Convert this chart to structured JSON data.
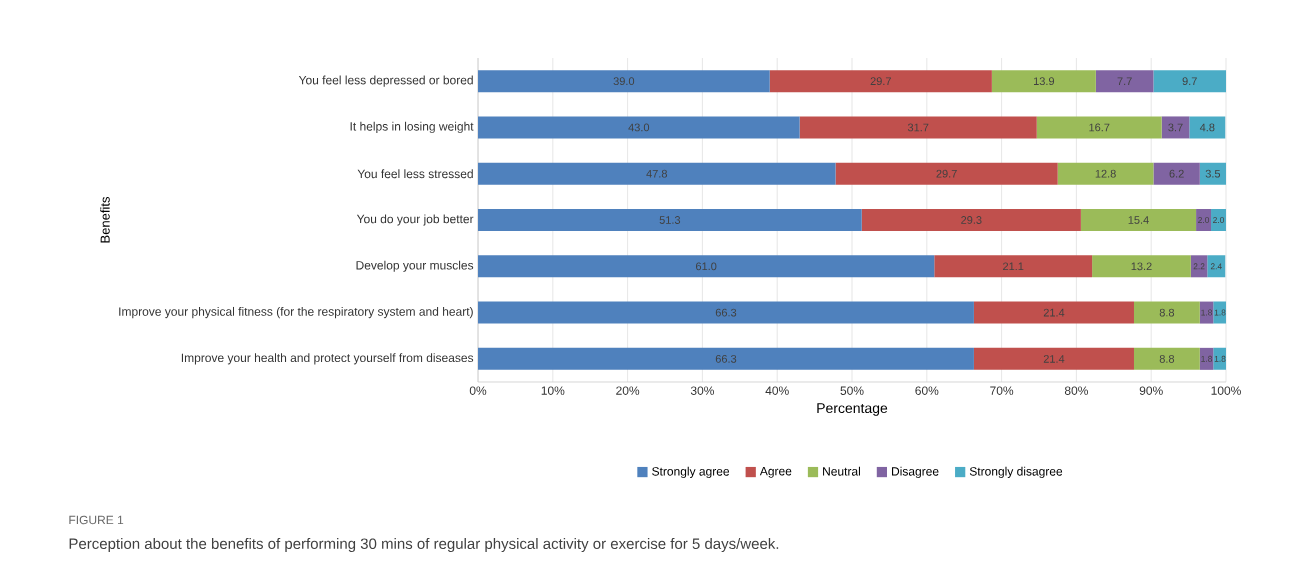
{
  "chart_data": {
    "type": "bar",
    "orientation": "horizontal",
    "stacked": true,
    "xlabel": "Percentage",
    "ylabel": "Benefits",
    "categories": [
      "You feel less depressed or bored",
      "It helps in losing weight",
      "You feel less stressed",
      "You do your job better",
      "Develop your muscles",
      "Improve your physical fitness (for the respiratory system and heart)",
      "Improve your health and protect yourself from diseases"
    ],
    "series": [
      {
        "name": "Strongly agree",
        "color": "#4f81bd",
        "values": [
          39.0,
          43.0,
          47.8,
          51.3,
          61.0,
          66.3,
          66.3
        ],
        "value_labels": [
          "39.0",
          "43.0",
          "47.8",
          "51.3",
          "61.0",
          "66.3",
          "66.3"
        ]
      },
      {
        "name": "Agree",
        "color": "#c0504d",
        "values": [
          29.7,
          31.7,
          29.7,
          29.3,
          21.1,
          21.4,
          21.4
        ],
        "value_labels": [
          "29.7",
          "31.7",
          "29.7",
          "29.3",
          "21.1",
          "21.4",
          "21.4"
        ]
      },
      {
        "name": "Neutral",
        "color": "#9bbb59",
        "values": [
          13.9,
          16.7,
          12.8,
          15.4,
          13.2,
          8.8,
          8.8
        ],
        "value_labels": [
          "13.9",
          "16.7",
          "12.8",
          "15.4",
          "13.2",
          "8.8",
          "8.8"
        ]
      },
      {
        "name": "Disagree",
        "color": "#8064a2",
        "values": [
          7.7,
          3.7,
          6.2,
          2.0,
          2.2,
          1.8,
          1.8
        ],
        "value_labels": [
          "7.7",
          "3.7",
          "6.2",
          "2.0",
          "2.2",
          "1.8",
          "1.8"
        ]
      },
      {
        "name": "Strongly disagree",
        "color": "#4bacc6",
        "values": [
          9.7,
          4.8,
          3.5,
          2.0,
          2.4,
          1.8,
          1.8
        ],
        "value_labels": [
          "9.7",
          "4.8",
          "3.5",
          "2.0",
          "2.4",
          "1.8",
          "1.8"
        ]
      }
    ],
    "xlim": [
      0,
      100
    ],
    "xticks": [
      {
        "value": 0,
        "label": "0%"
      },
      {
        "value": 10,
        "label": "10%"
      },
      {
        "value": 20,
        "label": "20%"
      },
      {
        "value": 30,
        "label": "30%"
      },
      {
        "value": 40,
        "label": "40%"
      },
      {
        "value": 50,
        "label": "50%"
      },
      {
        "value": 60,
        "label": "60%"
      },
      {
        "value": 70,
        "label": "70%"
      },
      {
        "value": 80,
        "label": "80%"
      },
      {
        "value": 90,
        "label": "90%"
      },
      {
        "value": 100,
        "label": "100%"
      }
    ],
    "grid": "x",
    "legend": "bottom",
    "annotations": [
      "FIGURE 1",
      "Perception about the benefits of performing 30 mins of regular physical activity or exercise for 5 days/week."
    ]
  }
}
